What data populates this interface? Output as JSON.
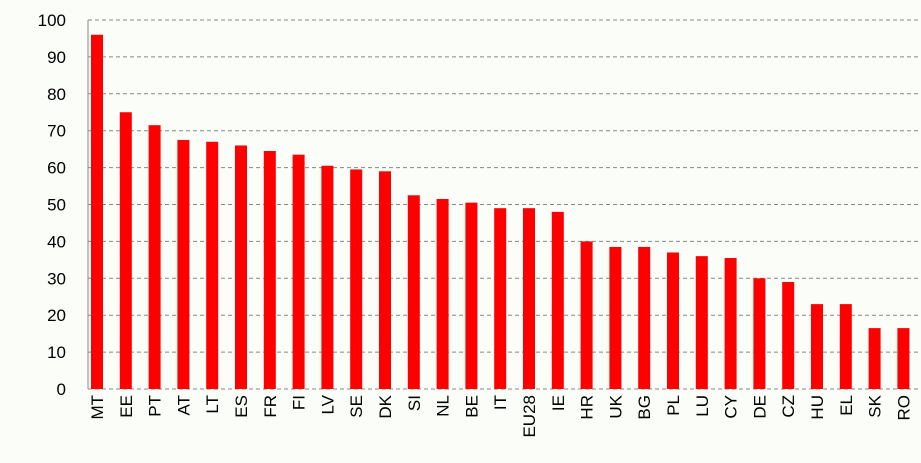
{
  "chart_data": {
    "type": "bar",
    "categories": [
      "MT",
      "EE",
      "PT",
      "AT",
      "LT",
      "ES",
      "FR",
      "FI",
      "LV",
      "SE",
      "DK",
      "SI",
      "NL",
      "BE",
      "IT",
      "EU28",
      "IE",
      "HR",
      "UK",
      "BG",
      "PL",
      "LU",
      "CY",
      "DE",
      "CZ",
      "HU",
      "EL",
      "SK",
      "RO"
    ],
    "values": [
      96,
      75,
      71.5,
      67.5,
      67,
      66,
      64.5,
      63.5,
      60.5,
      59.5,
      59,
      52.5,
      51.5,
      50.5,
      49,
      49,
      48,
      40,
      38.5,
      38.5,
      37,
      36,
      35.5,
      30,
      29,
      23,
      23,
      16.5,
      16.5
    ],
    "color": "#ff0000",
    "ylim": [
      0,
      100
    ],
    "yticks": [
      0,
      10,
      20,
      30,
      40,
      50,
      60,
      70,
      80,
      90,
      100
    ],
    "grid": true
  }
}
